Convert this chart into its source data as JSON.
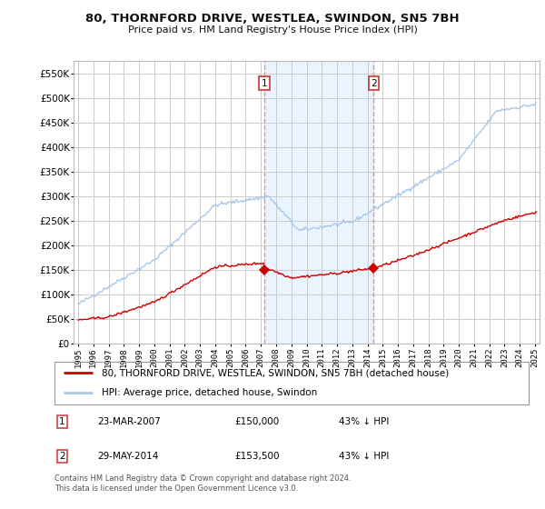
{
  "title": "80, THORNFORD DRIVE, WESTLEA, SWINDON, SN5 7BH",
  "subtitle": "Price paid vs. HM Land Registry's House Price Index (HPI)",
  "legend_line1": "80, THORNFORD DRIVE, WESTLEA, SWINDON, SN5 7BH (detached house)",
  "legend_line2": "HPI: Average price, detached house, Swindon",
  "transaction1_date": "23-MAR-2007",
  "transaction1_price": "£150,000",
  "transaction1_pct": "43% ↓ HPI",
  "transaction1_year": 2007.22,
  "transaction1_value": 150000,
  "transaction2_date": "29-MAY-2014",
  "transaction2_price": "£153,500",
  "transaction2_pct": "43% ↓ HPI",
  "transaction2_year": 2014.41,
  "transaction2_value": 153500,
  "footer": "Contains HM Land Registry data © Crown copyright and database right 2024.\nThis data is licensed under the Open Government Licence v3.0.",
  "ylim": [
    0,
    575000
  ],
  "yticks": [
    0,
    50000,
    100000,
    150000,
    200000,
    250000,
    300000,
    350000,
    400000,
    450000,
    500000,
    550000
  ],
  "background_color": "#ffffff",
  "plot_bg_color": "#ffffff",
  "grid_color": "#cccccc",
  "hpi_color": "#a8c8e8",
  "price_color": "#cc0000",
  "vline_color": "#ff8888",
  "marker_color": "#cc0000",
  "title_color": "#111111",
  "highlight_bg": "#ddeeff"
}
